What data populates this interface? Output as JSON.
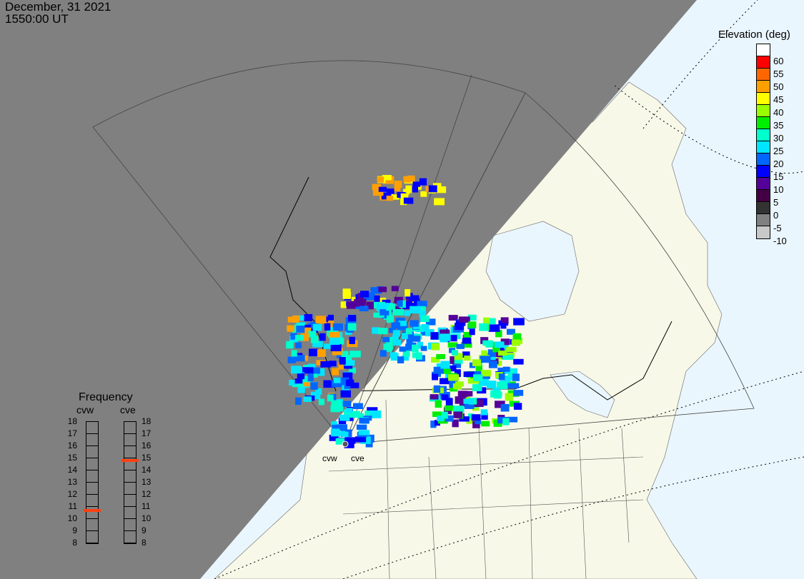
{
  "header": {
    "date": "December, 31 2021",
    "time": "1550:00 UT"
  },
  "legend": {
    "title": "Elevation (deg)",
    "ticks": [
      "60",
      "55",
      "50",
      "45",
      "40",
      "35",
      "30",
      "25",
      "20",
      "15",
      "10",
      "5",
      "0",
      "-5",
      "-10"
    ],
    "colors": [
      "#ffffff",
      "#ff0000",
      "#ff6600",
      "#ffa000",
      "#ffff00",
      "#99ff00",
      "#00ee00",
      "#00ffcc",
      "#00e5ff",
      "#0066ff",
      "#0000ff",
      "#550099",
      "#440044",
      "#333333",
      "#808080",
      "#c8c8c8"
    ]
  },
  "frequency": {
    "title": "Frequency",
    "radars": [
      {
        "name": "cvw",
        "value": 10.7
      },
      {
        "name": "cve",
        "value": 14.8
      }
    ],
    "ticks": [
      "18",
      "17",
      "16",
      "15",
      "14",
      "13",
      "12",
      "11",
      "10",
      "9",
      "8"
    ],
    "marker_color": "#ff4010"
  },
  "map": {
    "radar_labels": [
      "cvw",
      "cve"
    ],
    "colors": {
      "ocean": "#eaf6fd",
      "land": "#f8f8e8",
      "night": "#808080",
      "border": "#000000"
    }
  }
}
